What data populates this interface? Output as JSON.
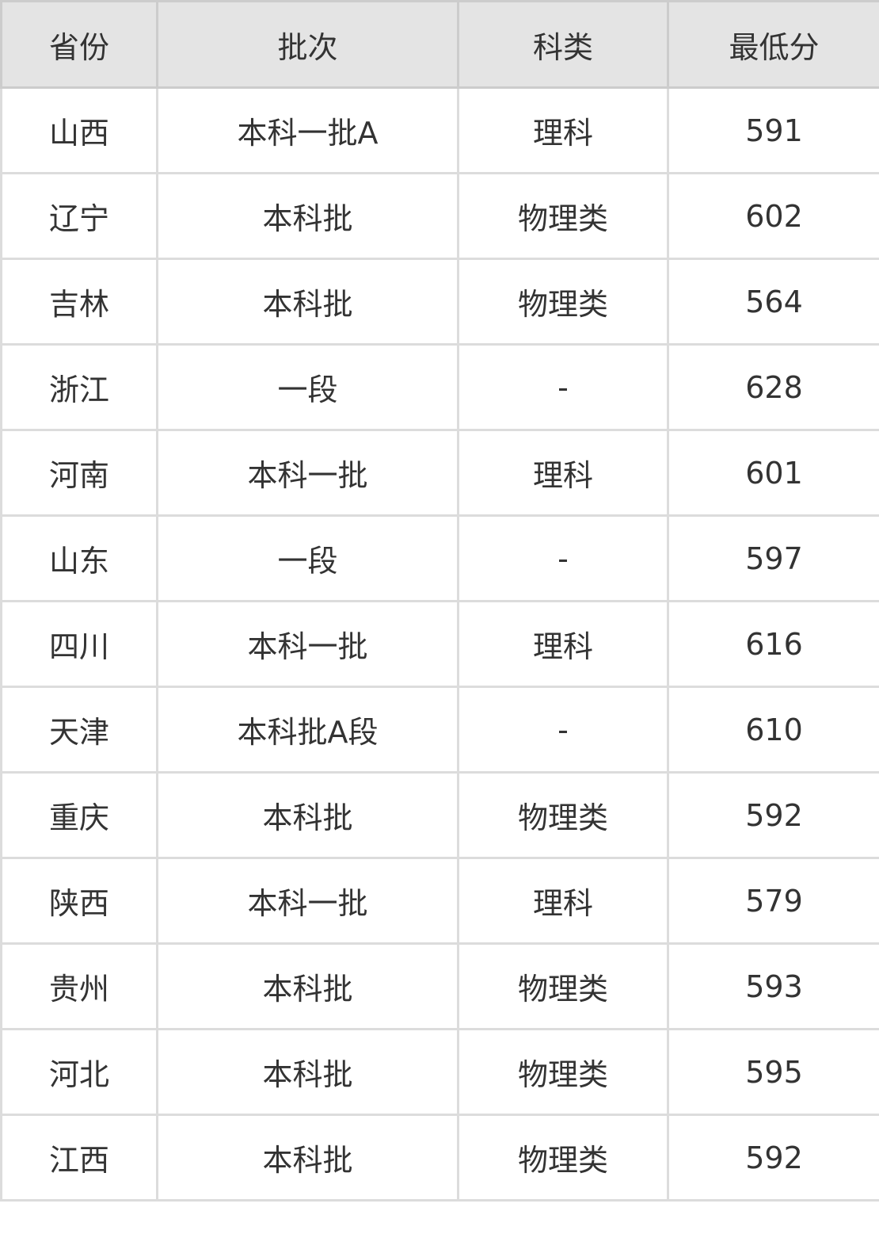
{
  "table": {
    "headers": [
      "省份",
      "批次",
      "科类",
      "最低分"
    ],
    "rows": [
      [
        "山西",
        "本科一批A",
        "理科",
        "591"
      ],
      [
        "辽宁",
        "本科批",
        "物理类",
        "602"
      ],
      [
        "吉林",
        "本科批",
        "物理类",
        "564"
      ],
      [
        "浙江",
        "一段",
        "-",
        "628"
      ],
      [
        "河南",
        "本科一批",
        "理科",
        "601"
      ],
      [
        "山东",
        "一段",
        "-",
        "597"
      ],
      [
        "四川",
        "本科一批",
        "理科",
        "616"
      ],
      [
        "天津",
        "本科批A段",
        "-",
        "610"
      ],
      [
        "重庆",
        "本科批",
        "物理类",
        "592"
      ],
      [
        "陕西",
        "本科一批",
        "理科",
        "579"
      ],
      [
        "贵州",
        "本科批",
        "物理类",
        "593"
      ],
      [
        "河北",
        "本科批",
        "物理类",
        "595"
      ],
      [
        "江西",
        "本科批",
        "物理类",
        "592"
      ]
    ]
  },
  "colors": {
    "header_bg": "#e4e4e4",
    "border": "#dcdcdc",
    "text": "#333333"
  }
}
